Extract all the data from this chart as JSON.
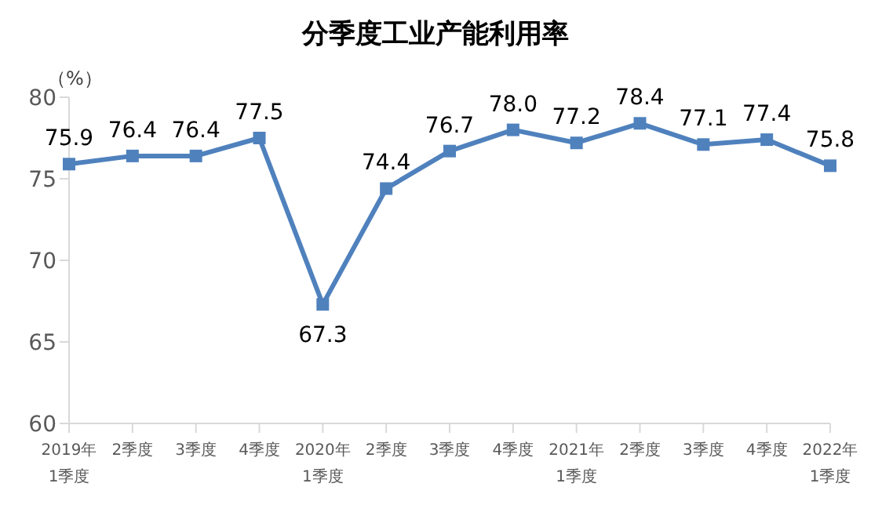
{
  "chart_data": {
    "type": "line",
    "title": "分季度工业产能利用率",
    "ylabel": "（%）",
    "categories": [
      "2019年\n1季度",
      "2季度",
      "3季度",
      "4季度",
      "2020年\n1季度",
      "2季度",
      "3季度",
      "4季度",
      "2021年\n1季度",
      "2季度",
      "3季度",
      "4季度",
      "2022年\n1季度"
    ],
    "series": [
      {
        "color": "#4f81bd",
        "values": [
          75.9,
          76.4,
          76.4,
          77.5,
          67.3,
          74.4,
          76.7,
          78.0,
          77.2,
          78.4,
          77.1,
          77.4,
          75.8
        ]
      }
    ],
    "value_labels": [
      "75.9",
      "76.4",
      "76.4",
      "77.5",
      "67.3",
      "74.4",
      "76.7",
      "78.0",
      "77.2",
      "78.4",
      "77.1",
      "77.4",
      "75.8"
    ],
    "ylim": [
      60,
      80
    ],
    "yticks": [
      60,
      65,
      70,
      75,
      80
    ],
    "grid": false,
    "legend": false,
    "marker": "square",
    "line_style": "solid"
  }
}
